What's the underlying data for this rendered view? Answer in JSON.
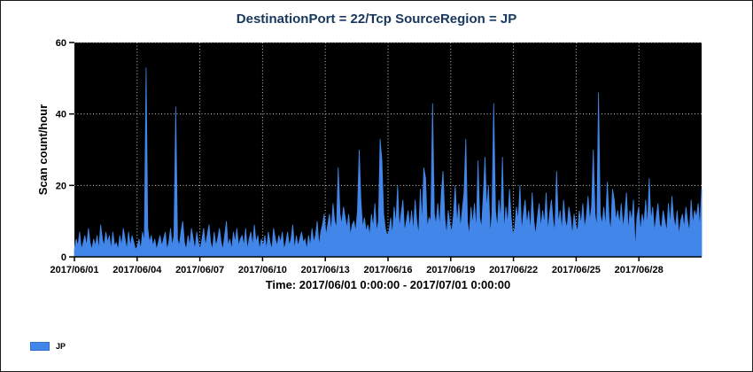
{
  "figure": {
    "background": "#ffffff",
    "border_color": "#1a1a1a"
  },
  "chart_data": {
    "type": "area",
    "title": "DestinationPort = 22/Tcp SourceRegion = JP",
    "title_color": "#17375D",
    "ylabel": "Scan count/hour",
    "xlabel": "Time: 2017/06/01 0:00:00 - 2017/07/01 0:00:00",
    "plot_bg": "#000000",
    "grid_color": "#c8c8c8",
    "grid_style": "dotted",
    "axis_color": "#000000",
    "ylim": [
      0,
      60
    ],
    "y_ticks": [
      0,
      20,
      40,
      60
    ],
    "x_range_hours": [
      0,
      720
    ],
    "x_tick_hours": [
      0,
      72,
      144,
      216,
      288,
      360,
      432,
      504,
      576,
      648
    ],
    "x_tick_labels": [
      "2017/06/01",
      "2017/06/04",
      "2017/06/07",
      "2017/06/10",
      "2017/06/13",
      "2017/06/16",
      "2017/06/19",
      "2017/06/22",
      "2017/06/25",
      "2017/06/28"
    ],
    "sample_step_hours": 2,
    "legend": {
      "position": "bottom-left",
      "entries": [
        {
          "label": "JP",
          "color": "#4186E8"
        }
      ]
    },
    "series": [
      {
        "name": "JP",
        "color": "#4186E8",
        "values": [
          2,
          5,
          3,
          7,
          2,
          4,
          6,
          3,
          8,
          4,
          2,
          5,
          3,
          6,
          2,
          9,
          5,
          3,
          7,
          4,
          6,
          2,
          7,
          3,
          4,
          2,
          6,
          3,
          8,
          5,
          2,
          7,
          3,
          6,
          4,
          2,
          3,
          5,
          2,
          7,
          4,
          53,
          8,
          4,
          6,
          3,
          5,
          2,
          4,
          6,
          3,
          5,
          7,
          2,
          4,
          8,
          3,
          6,
          42,
          5,
          3,
          7,
          10,
          4,
          2,
          6,
          3,
          8,
          5,
          2,
          7,
          4,
          2,
          5,
          8,
          3,
          6,
          9,
          4,
          2,
          7,
          3,
          5,
          8,
          4,
          2,
          6,
          10,
          3,
          5,
          2,
          7,
          4,
          8,
          3,
          5,
          6,
          3,
          8,
          2,
          5,
          7,
          3,
          9,
          4,
          6,
          2,
          5,
          3,
          6,
          2,
          7,
          4,
          2,
          8,
          5,
          3,
          6,
          4,
          7,
          2,
          4,
          7,
          3,
          5,
          9,
          2,
          6,
          3,
          5,
          7,
          4,
          5,
          2,
          6,
          3,
          8,
          4,
          6,
          10,
          3,
          7,
          9,
          12,
          6,
          9,
          12,
          7,
          15,
          10,
          8,
          25,
          12,
          9,
          14,
          11,
          8,
          12,
          6,
          9,
          10,
          7,
          13,
          30,
          16,
          8,
          11,
          7,
          9,
          6,
          12,
          8,
          15,
          7,
          10,
          33,
          27,
          12,
          8,
          6,
          7,
          11,
          6,
          14,
          9,
          20,
          8,
          12,
          16,
          7,
          10,
          13,
          8,
          13,
          7,
          16,
          10,
          6,
          19,
          9,
          25,
          22,
          8,
          11,
          10,
          43,
          12,
          9,
          15,
          8,
          18,
          24,
          11,
          6,
          13,
          9,
          7,
          12,
          20,
          9,
          15,
          8,
          13,
          18,
          33,
          10,
          6,
          14,
          9,
          15,
          7,
          27,
          11,
          8,
          17,
          28,
          13,
          20,
          6,
          12,
          43,
          13,
          8,
          16,
          10,
          28,
          7,
          14,
          9,
          19,
          11,
          6,
          8,
          14,
          10,
          20,
          7,
          12,
          16,
          9,
          13,
          7,
          18,
          10,
          6,
          11,
          15,
          8,
          13,
          9,
          18,
          7,
          12,
          16,
          10,
          7,
          24,
          9,
          13,
          7,
          16,
          10,
          8,
          14,
          11,
          6,
          12,
          9,
          7,
          13,
          9,
          15,
          8,
          11,
          17,
          10,
          14,
          30,
          12,
          8,
          46,
          12,
          9,
          14,
          8,
          21,
          11,
          7,
          19,
          16,
          10,
          13,
          9,
          15,
          8,
          12,
          18,
          7,
          13,
          10,
          16,
          2,
          11,
          14,
          7,
          12,
          9,
          16,
          8,
          22,
          10,
          14,
          7,
          11,
          15,
          9,
          8,
          13,
          10,
          7,
          15,
          9,
          17,
          11,
          8,
          13,
          6,
          10,
          12,
          8,
          14,
          10,
          7,
          16,
          9,
          13,
          11,
          15,
          8,
          19
        ]
      }
    ]
  }
}
